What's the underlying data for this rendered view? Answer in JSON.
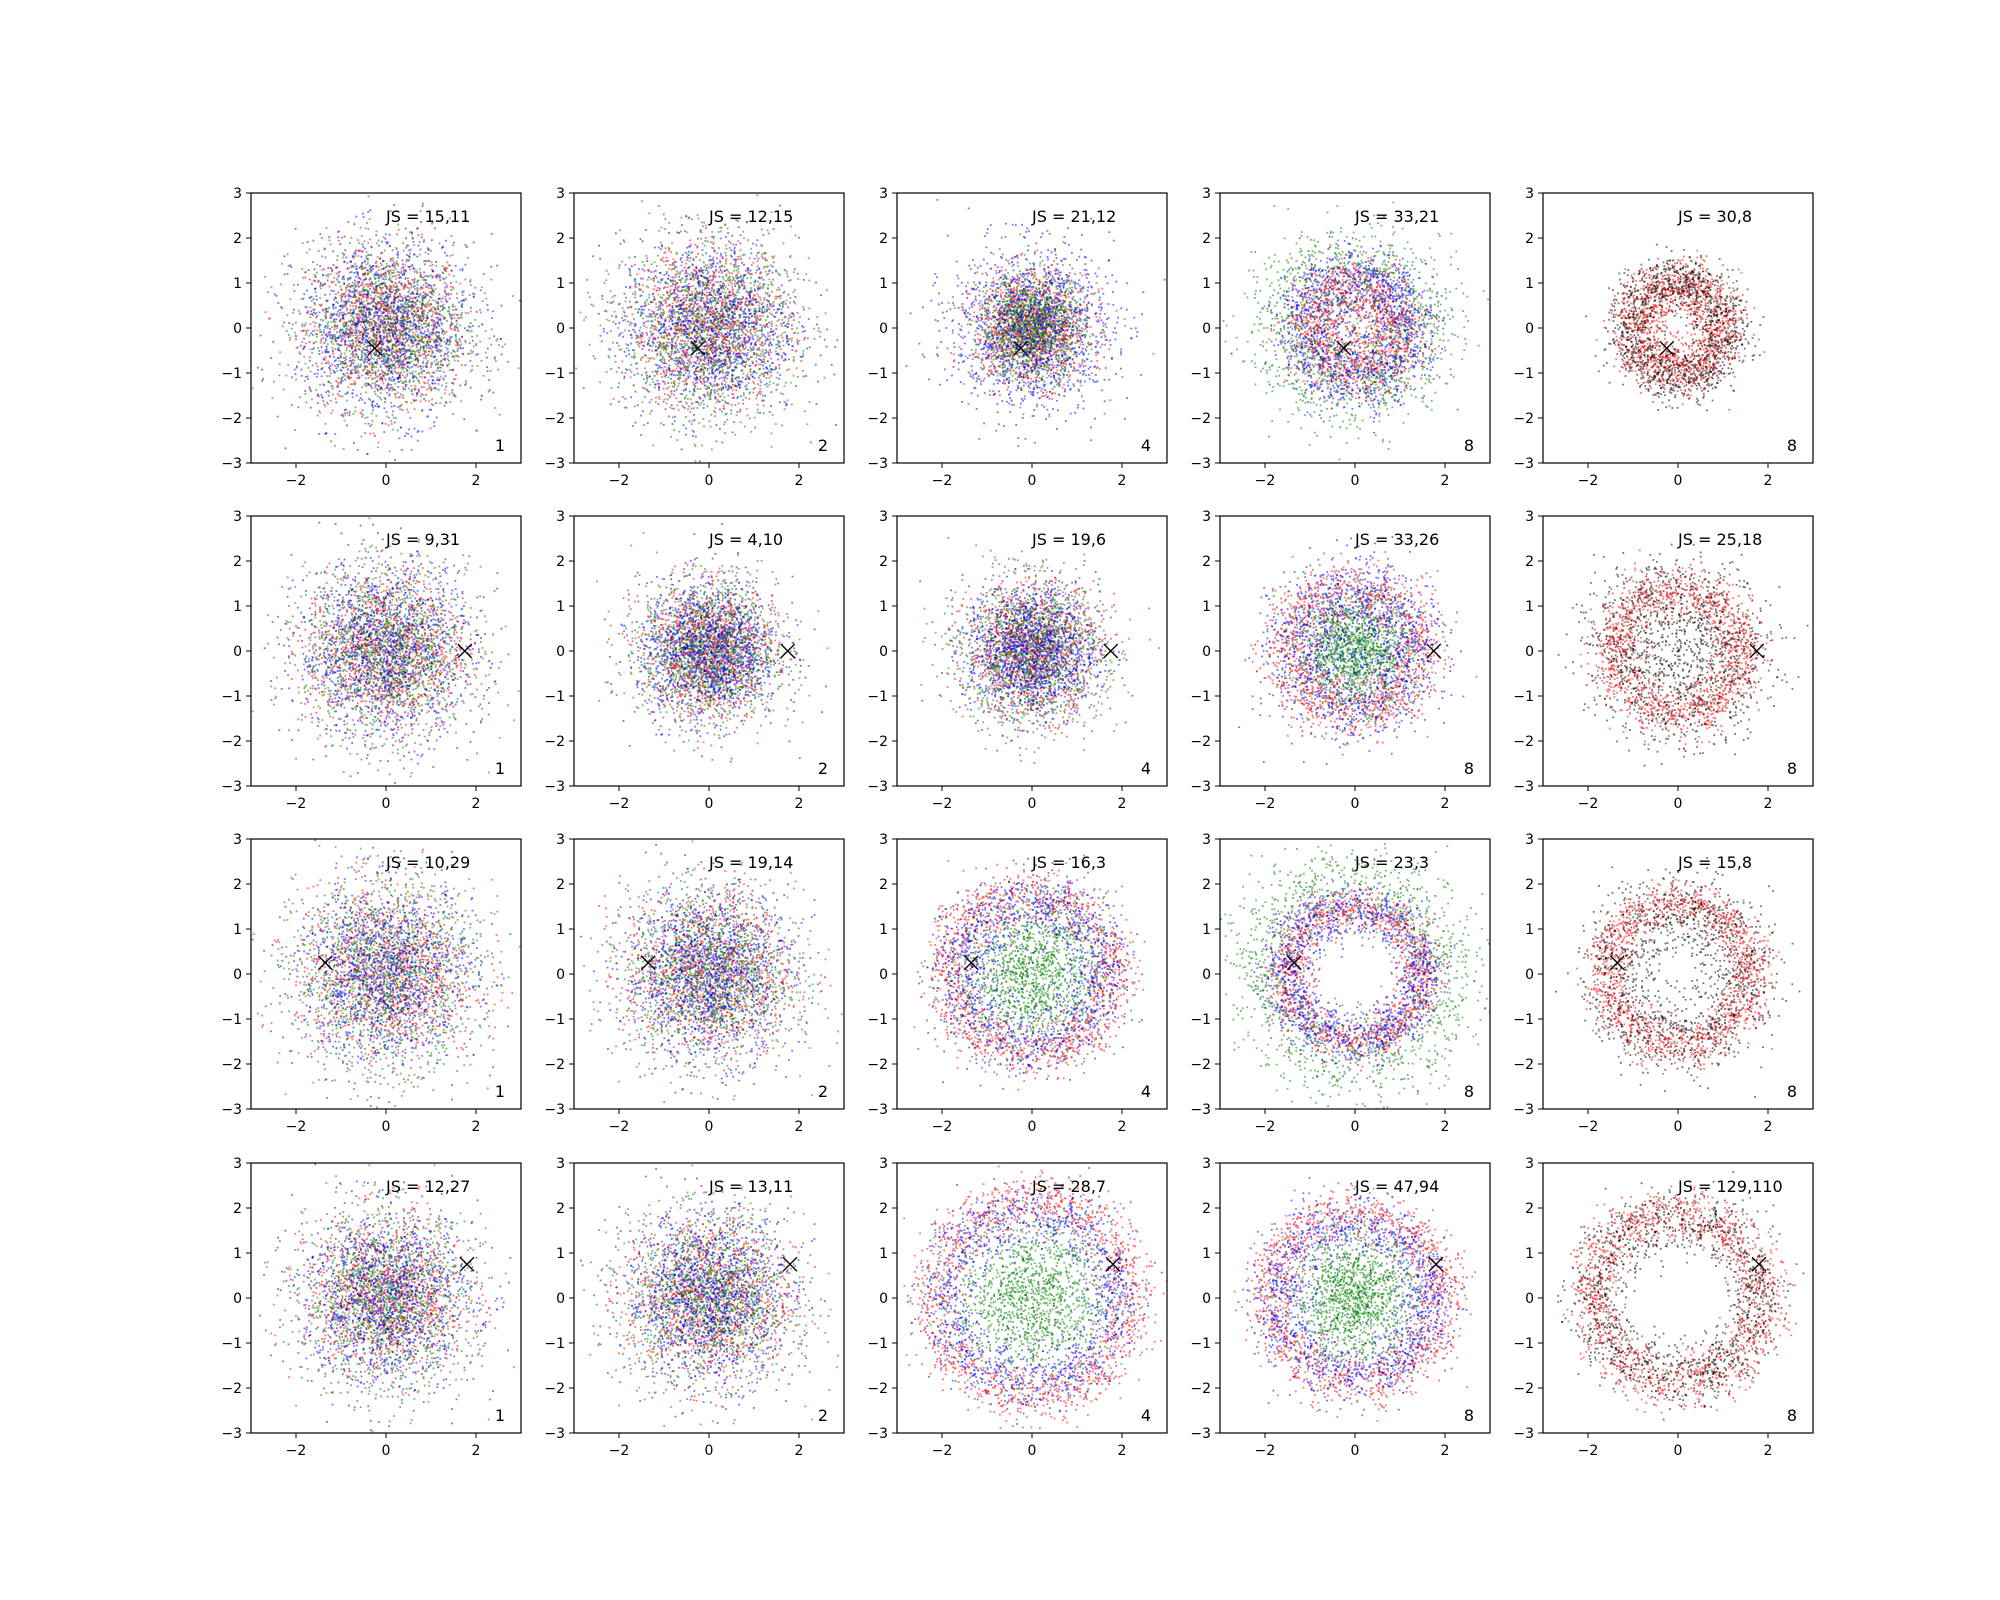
{
  "figure": {
    "rows": 4,
    "cols": 5,
    "marker_symbol": "×",
    "colors": {
      "red": "#ff0000",
      "green": "#008000",
      "blue": "#0000ff",
      "black": "#000000"
    }
  },
  "chart_data": {
    "type": "scatter",
    "xlim": [
      -3,
      3
    ],
    "ylim": [
      -3,
      3
    ],
    "xticks": [
      -2,
      0,
      2
    ],
    "yticks": [
      -3,
      -2,
      -1,
      0,
      1,
      2,
      3
    ],
    "grid": false,
    "legend": "none",
    "panels": [
      {
        "row": 0,
        "col": 0,
        "label": "JS = 15,11",
        "k": "1",
        "marker": [
          -0.25,
          -0.45
        ],
        "series": [
          {
            "color": "red",
            "radius": 1.2,
            "std": 0.85,
            "shape": "disk"
          },
          {
            "color": "green",
            "radius": 1.2,
            "std": 0.85,
            "shape": "disk"
          },
          {
            "color": "blue",
            "radius": 1.3,
            "std": 0.95,
            "shape": "disk"
          }
        ]
      },
      {
        "row": 0,
        "col": 1,
        "label": "JS = 12,15",
        "k": "2",
        "marker": [
          -0.25,
          -0.45
        ],
        "series": [
          {
            "color": "red",
            "radius": 1.2,
            "std": 0.85,
            "shape": "disk"
          },
          {
            "color": "green",
            "radius": 1.2,
            "std": 0.9,
            "shape": "disk"
          },
          {
            "color": "blue",
            "radius": 1.3,
            "std": 0.95,
            "shape": "disk"
          }
        ]
      },
      {
        "row": 0,
        "col": 2,
        "label": "JS = 21,12",
        "k": "4",
        "marker": [
          -0.25,
          -0.45
        ],
        "series": [
          {
            "color": "red",
            "radius": 0.9,
            "std": 0.6,
            "shape": "disk"
          },
          {
            "color": "green",
            "radius": 0.8,
            "std": 0.55,
            "shape": "disk"
          },
          {
            "color": "blue",
            "radius": 1.3,
            "std": 0.85,
            "shape": "disk"
          }
        ]
      },
      {
        "row": 0,
        "col": 3,
        "label": "JS = 33,21",
        "k": "8",
        "marker": [
          -0.25,
          -0.45
        ],
        "series": [
          {
            "color": "red",
            "radius": 1.0,
            "std": 0.35,
            "shape": "ring"
          },
          {
            "color": "green",
            "radius": 1.5,
            "std": 0.55,
            "shape": "ring"
          },
          {
            "color": "blue",
            "radius": 1.2,
            "std": 0.4,
            "shape": "ring"
          }
        ]
      },
      {
        "row": 0,
        "col": 4,
        "label": "JS = 30,8",
        "k": "8",
        "marker": [
          -0.25,
          -0.45
        ],
        "series": [
          {
            "color": "red",
            "radius": 1.0,
            "std": 0.3,
            "shape": "ring"
          },
          {
            "color": "black",
            "radius": 1.1,
            "std": 0.3,
            "shape": "ring"
          }
        ]
      },
      {
        "row": 1,
        "col": 0,
        "label": "JS = 9,31",
        "k": "1",
        "marker": [
          1.75,
          0.0
        ],
        "series": [
          {
            "color": "red",
            "radius": 1.2,
            "std": 0.85,
            "shape": "disk"
          },
          {
            "color": "green",
            "radius": 1.2,
            "std": 0.85,
            "shape": "disk"
          },
          {
            "color": "blue",
            "radius": 1.3,
            "std": 0.95,
            "shape": "disk"
          }
        ]
      },
      {
        "row": 1,
        "col": 1,
        "label": "JS = 4,10",
        "k": "2",
        "marker": [
          1.75,
          0.0
        ],
        "series": [
          {
            "color": "red",
            "radius": 1.0,
            "std": 0.7,
            "shape": "disk"
          },
          {
            "color": "green",
            "radius": 1.0,
            "std": 0.7,
            "shape": "disk"
          },
          {
            "color": "blue",
            "radius": 1.1,
            "std": 0.75,
            "shape": "disk"
          }
        ]
      },
      {
        "row": 1,
        "col": 2,
        "label": "JS = 19,6",
        "k": "4",
        "marker": [
          1.75,
          0.0
        ],
        "series": [
          {
            "color": "red",
            "radius": 1.1,
            "std": 0.7,
            "shape": "disk"
          },
          {
            "color": "green",
            "radius": 1.1,
            "std": 0.75,
            "shape": "disk"
          },
          {
            "color": "blue",
            "radius": 1.1,
            "std": 0.7,
            "shape": "disk"
          }
        ]
      },
      {
        "row": 1,
        "col": 3,
        "label": "JS = 33,26",
        "k": "8",
        "marker": [
          1.75,
          0.0
        ],
        "series": [
          {
            "color": "red",
            "radius": 1.4,
            "std": 0.35,
            "shape": "ring"
          },
          {
            "color": "green",
            "radius": 0.9,
            "std": 0.6,
            "shape": "disk"
          },
          {
            "color": "blue",
            "radius": 1.3,
            "std": 0.5,
            "shape": "ring"
          }
        ]
      },
      {
        "row": 1,
        "col": 4,
        "label": "JS = 25,18",
        "k": "8",
        "marker": [
          1.75,
          0.0
        ],
        "series": [
          {
            "color": "red",
            "radius": 1.4,
            "std": 0.3,
            "shape": "ring"
          },
          {
            "color": "black",
            "radius": 1.3,
            "std": 0.55,
            "shape": "ring"
          }
        ]
      },
      {
        "row": 2,
        "col": 0,
        "label": "JS = 10,29",
        "k": "1",
        "marker": [
          -1.35,
          0.25
        ],
        "series": [
          {
            "color": "red",
            "radius": 1.4,
            "std": 0.95,
            "shape": "disk"
          },
          {
            "color": "green",
            "radius": 1.4,
            "std": 0.95,
            "shape": "disk"
          },
          {
            "color": "blue",
            "radius": 1.4,
            "std": 0.95,
            "shape": "disk"
          }
        ]
      },
      {
        "row": 2,
        "col": 1,
        "label": "JS = 19,14",
        "k": "2",
        "marker": [
          -1.35,
          0.25
        ],
        "series": [
          {
            "color": "red",
            "radius": 1.6,
            "std": 0.9,
            "shape": "disk"
          },
          {
            "color": "green",
            "radius": 1.3,
            "std": 0.85,
            "shape": "disk"
          },
          {
            "color": "blue",
            "radius": 1.5,
            "std": 0.9,
            "shape": "disk"
          }
        ]
      },
      {
        "row": 2,
        "col": 2,
        "label": "JS = 16,3",
        "k": "4",
        "marker": [
          -1.35,
          0.25
        ],
        "series": [
          {
            "color": "red",
            "radius": 1.8,
            "std": 0.3,
            "shape": "ring"
          },
          {
            "color": "green",
            "radius": 1.2,
            "std": 0.75,
            "shape": "disk"
          },
          {
            "color": "blue",
            "radius": 1.6,
            "std": 0.4,
            "shape": "ring"
          }
        ]
      },
      {
        "row": 2,
        "col": 3,
        "label": "JS = 23,3",
        "k": "8",
        "marker": [
          -1.35,
          0.25
        ],
        "series": [
          {
            "color": "red",
            "radius": 1.5,
            "std": 0.25,
            "shape": "ring"
          },
          {
            "color": "green",
            "radius": 2.1,
            "std": 0.5,
            "shape": "ring"
          },
          {
            "color": "blue",
            "radius": 1.5,
            "std": 0.3,
            "shape": "ring"
          }
        ]
      },
      {
        "row": 2,
        "col": 4,
        "label": "JS = 15,8",
        "k": "8",
        "marker": [
          -1.35,
          0.25
        ],
        "series": [
          {
            "color": "red",
            "radius": 1.6,
            "std": 0.25,
            "shape": "ring"
          },
          {
            "color": "black",
            "radius": 1.5,
            "std": 0.45,
            "shape": "ring"
          }
        ]
      },
      {
        "row": 3,
        "col": 0,
        "label": "JS = 12,27",
        "k": "1",
        "marker": [
          1.8,
          0.75
        ],
        "series": [
          {
            "color": "red",
            "radius": 1.2,
            "std": 0.85,
            "shape": "disk"
          },
          {
            "color": "green",
            "radius": 1.2,
            "std": 0.85,
            "shape": "disk"
          },
          {
            "color": "blue",
            "radius": 1.3,
            "std": 0.95,
            "shape": "disk"
          }
        ]
      },
      {
        "row": 3,
        "col": 1,
        "label": "JS = 13,11",
        "k": "2",
        "marker": [
          1.8,
          0.75
        ],
        "series": [
          {
            "color": "red",
            "radius": 1.5,
            "std": 0.9,
            "shape": "disk"
          },
          {
            "color": "green",
            "radius": 1.3,
            "std": 0.85,
            "shape": "disk"
          },
          {
            "color": "blue",
            "radius": 1.5,
            "std": 0.9,
            "shape": "disk"
          }
        ]
      },
      {
        "row": 3,
        "col": 2,
        "label": "JS = 28,7",
        "k": "4",
        "marker": [
          1.8,
          0.75
        ],
        "series": [
          {
            "color": "red",
            "radius": 2.2,
            "std": 0.3,
            "shape": "ring"
          },
          {
            "color": "green",
            "radius": 1.4,
            "std": 0.8,
            "shape": "disk"
          },
          {
            "color": "blue",
            "radius": 1.9,
            "std": 0.35,
            "shape": "ring"
          }
        ]
      },
      {
        "row": 3,
        "col": 3,
        "label": "JS = 47,94",
        "k": "8",
        "marker": [
          1.8,
          0.75
        ],
        "series": [
          {
            "color": "red",
            "radius": 1.9,
            "std": 0.3,
            "shape": "ring"
          },
          {
            "color": "green",
            "radius": 1.2,
            "std": 0.65,
            "shape": "disk"
          },
          {
            "color": "blue",
            "radius": 1.7,
            "std": 0.35,
            "shape": "ring"
          }
        ]
      },
      {
        "row": 3,
        "col": 4,
        "label": "JS = 129,110",
        "k": "8",
        "marker": [
          1.8,
          0.75
        ],
        "series": [
          {
            "color": "red",
            "radius": 1.9,
            "std": 0.3,
            "shape": "ring"
          },
          {
            "color": "black",
            "radius": 1.8,
            "std": 0.35,
            "shape": "ring"
          }
        ]
      }
    ]
  }
}
